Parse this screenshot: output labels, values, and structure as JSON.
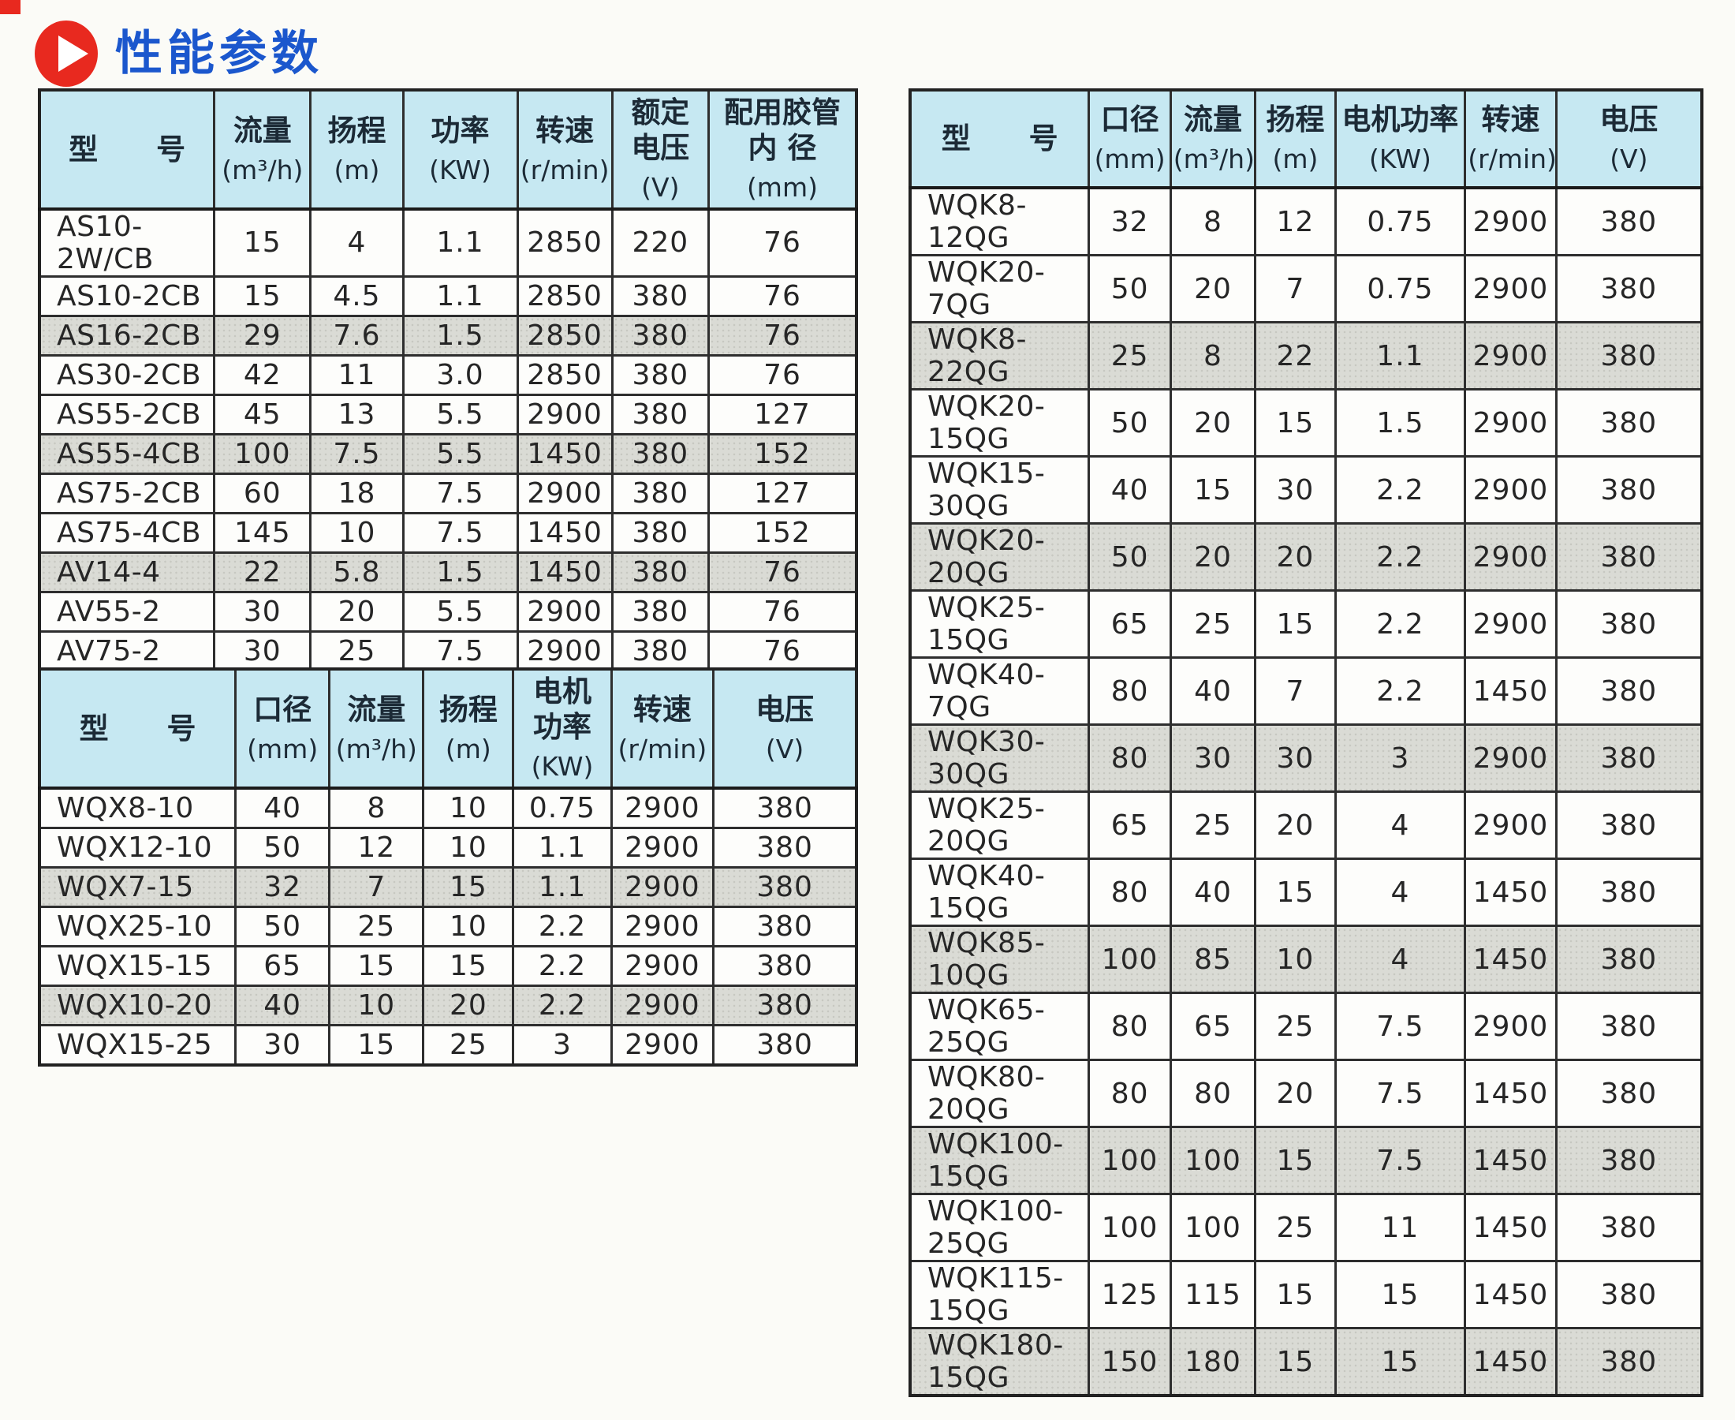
{
  "title": {
    "text": "性能参数"
  },
  "colors": {
    "title_blue": "#1b57cd",
    "icon_red": "#e8291f",
    "header_bg": "#c6e8f2",
    "shaded_row": "#dadbd5",
    "border_dark": "#2e2e2e",
    "page_bg": "#fbfbf7"
  },
  "table_as_av": {
    "headers": [
      [
        "型　　号"
      ],
      [
        "流量",
        "(m³/h)"
      ],
      [
        "扬程",
        "(m)"
      ],
      [
        "功率",
        "(KW)"
      ],
      [
        "转速",
        "(r/min)"
      ],
      [
        "额定",
        "电压",
        "(V)"
      ],
      [
        "配用胶管",
        "内 径",
        "(mm)"
      ]
    ],
    "rows": [
      [
        "AS10-2W/CB",
        "15",
        "4",
        "1.1",
        "2850",
        "220",
        "76"
      ],
      [
        "AS10-2CB",
        "15",
        "4.5",
        "1.1",
        "2850",
        "380",
        "76"
      ],
      [
        "AS16-2CB",
        "29",
        "7.6",
        "1.5",
        "2850",
        "380",
        "76"
      ],
      [
        "AS30-2CB",
        "42",
        "11",
        "3.0",
        "2850",
        "380",
        "76"
      ],
      [
        "AS55-2CB",
        "45",
        "13",
        "5.5",
        "2900",
        "380",
        "127"
      ],
      [
        "AS55-4CB",
        "100",
        "7.5",
        "5.5",
        "1450",
        "380",
        "152"
      ],
      [
        "AS75-2CB",
        "60",
        "18",
        "7.5",
        "2900",
        "380",
        "127"
      ],
      [
        "AS75-4CB",
        "145",
        "10",
        "7.5",
        "1450",
        "380",
        "152"
      ],
      [
        "AV14-4",
        "22",
        "5.8",
        "1.5",
        "1450",
        "380",
        "76"
      ],
      [
        "AV55-2",
        "30",
        "20",
        "5.5",
        "2900",
        "380",
        "76"
      ],
      [
        "AV75-2",
        "30",
        "25",
        "7.5",
        "2900",
        "380",
        "76"
      ]
    ]
  },
  "table_wqx": {
    "headers": [
      [
        "型　　号"
      ],
      [
        "口径",
        "(mm)"
      ],
      [
        "流量",
        "(m³/h)"
      ],
      [
        "扬程",
        "(m)"
      ],
      [
        "电机",
        "功率",
        "(KW)"
      ],
      [
        "转速",
        "(r/min)"
      ],
      [
        "电压",
        "(V)"
      ]
    ],
    "rows": [
      [
        "WQX8-10",
        "40",
        "8",
        "10",
        "0.75",
        "2900",
        "380"
      ],
      [
        "WQX12-10",
        "50",
        "12",
        "10",
        "1.1",
        "2900",
        "380"
      ],
      [
        "WQX7-15",
        "32",
        "7",
        "15",
        "1.1",
        "2900",
        "380"
      ],
      [
        "WQX25-10",
        "50",
        "25",
        "10",
        "2.2",
        "2900",
        "380"
      ],
      [
        "WQX15-15",
        "65",
        "15",
        "15",
        "2.2",
        "2900",
        "380"
      ],
      [
        "WQX10-20",
        "40",
        "10",
        "20",
        "2.2",
        "2900",
        "380"
      ],
      [
        "WQX15-25",
        "30",
        "15",
        "25",
        "3",
        "2900",
        "380"
      ]
    ]
  },
  "table_wqk": {
    "headers": [
      [
        "型　　号"
      ],
      [
        "口径",
        "(mm)"
      ],
      [
        "流量",
        "(m³/h)"
      ],
      [
        "扬程",
        "(m)"
      ],
      [
        "电机功率",
        "(KW)"
      ],
      [
        "转速",
        "(r/min)"
      ],
      [
        "电压",
        "(V)"
      ]
    ],
    "rows": [
      [
        "WQK8-12QG",
        "32",
        "8",
        "12",
        "0.75",
        "2900",
        "380"
      ],
      [
        "WQK20-7QG",
        "50",
        "20",
        "7",
        "0.75",
        "2900",
        "380"
      ],
      [
        "WQK8-22QG",
        "25",
        "8",
        "22",
        "1.1",
        "2900",
        "380"
      ],
      [
        "WQK20-15QG",
        "50",
        "20",
        "15",
        "1.5",
        "2900",
        "380"
      ],
      [
        "WQK15-30QG",
        "40",
        "15",
        "30",
        "2.2",
        "2900",
        "380"
      ],
      [
        "WQK20-20QG",
        "50",
        "20",
        "20",
        "2.2",
        "2900",
        "380"
      ],
      [
        "WQK25-15QG",
        "65",
        "25",
        "15",
        "2.2",
        "2900",
        "380"
      ],
      [
        "WQK40-7QG",
        "80",
        "40",
        "7",
        "2.2",
        "1450",
        "380"
      ],
      [
        "WQK30-30QG",
        "80",
        "30",
        "30",
        "3",
        "2900",
        "380"
      ],
      [
        "WQK25-20QG",
        "65",
        "25",
        "20",
        "4",
        "2900",
        "380"
      ],
      [
        "WQK40-15QG",
        "80",
        "40",
        "15",
        "4",
        "1450",
        "380"
      ],
      [
        "WQK85-10QG",
        "100",
        "85",
        "10",
        "4",
        "1450",
        "380"
      ],
      [
        "WQK65-25QG",
        "80",
        "65",
        "25",
        "7.5",
        "2900",
        "380"
      ],
      [
        "WQK80-20QG",
        "80",
        "80",
        "20",
        "7.5",
        "1450",
        "380"
      ],
      [
        "WQK100-15QG",
        "100",
        "100",
        "15",
        "7.5",
        "1450",
        "380"
      ],
      [
        "WQK100-25QG",
        "100",
        "100",
        "25",
        "11",
        "1450",
        "380"
      ],
      [
        "WQK115-15QG",
        "125",
        "115",
        "15",
        "15",
        "1450",
        "380"
      ],
      [
        "WQK180-15QG",
        "150",
        "180",
        "15",
        "15",
        "1450",
        "380"
      ]
    ]
  }
}
